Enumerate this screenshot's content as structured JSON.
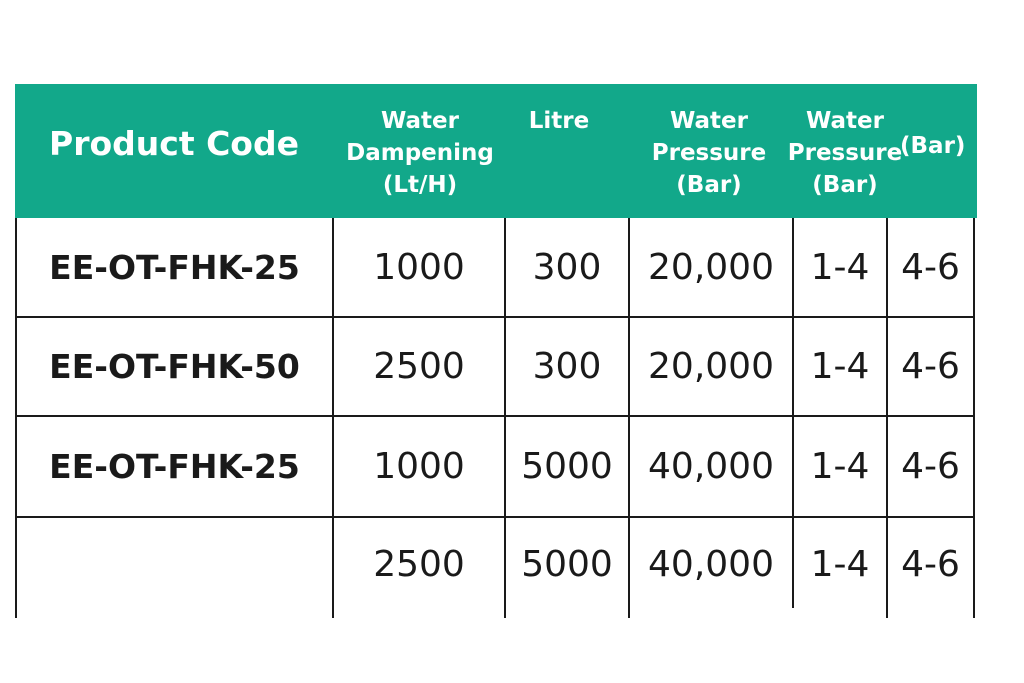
{
  "colors": {
    "header_background": "#12a88a",
    "header_text": "#ffffff",
    "body_text": "#1a1a1a",
    "grid_lines": "#1a1a1a"
  },
  "table": {
    "headers": {
      "product_code": "Product Code",
      "water_dampening": "Water\nDampening\n(Lt/H)",
      "litre": "Litre",
      "water_pressure_1": "Water\nPressure\n(Bar)",
      "water_pressure_2": "Water\nPressure\n(Bar)",
      "bar": "(Bar)"
    },
    "rows": [
      {
        "product_code": "EE-OT-FHK-25",
        "dampening": "1000",
        "litre": "300",
        "pressure_1": "20,000",
        "pressure_2": "1-4",
        "bar": "4-6"
      },
      {
        "product_code": "EE-OT-FHK-50",
        "dampening": "2500",
        "litre": "300",
        "pressure_1": "20,000",
        "pressure_2": "1-4",
        "bar": "4-6"
      },
      {
        "product_code": "EE-OT-FHK-25",
        "dampening": "1000",
        "litre": "5000",
        "pressure_1": "40,000",
        "pressure_2": "1-4",
        "bar": "4-6"
      },
      {
        "product_code": "",
        "dampening": "2500",
        "litre": "5000",
        "pressure_1": "40,000",
        "pressure_2": "1-4",
        "bar": "4-6"
      }
    ]
  }
}
